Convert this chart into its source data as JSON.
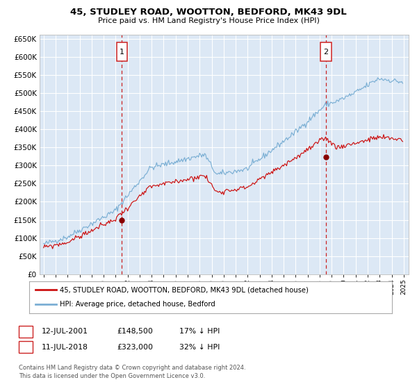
{
  "title1": "45, STUDLEY ROAD, WOOTTON, BEDFORD, MK43 9DL",
  "title2": "Price paid vs. HM Land Registry's House Price Index (HPI)",
  "legend1": "45, STUDLEY ROAD, WOOTTON, BEDFORD, MK43 9DL (detached house)",
  "legend2": "HPI: Average price, detached house, Bedford",
  "marker1_date": "2001-07-12",
  "marker1_label": "1",
  "marker1_value": 148500,
  "marker2_date": "2018-07-11",
  "marker2_label": "2",
  "marker2_value": 323000,
  "footer": "Contains HM Land Registry data © Crown copyright and database right 2024.\nThis data is licensed under the Open Government Licence v3.0.",
  "ylim": [
    0,
    660000
  ],
  "yticks": [
    0,
    50000,
    100000,
    150000,
    200000,
    250000,
    300000,
    350000,
    400000,
    450000,
    500000,
    550000,
    600000,
    650000
  ],
  "hpi_color": "#7bafd4",
  "price_color": "#cc1111",
  "marker_color": "#880000",
  "dashed_color": "#cc2222",
  "bg_color": "#dce8f5",
  "grid_color": "#ffffff",
  "box_edge_color": "#cc2222",
  "fig_bg": "#ffffff",
  "spine_color": "#bbbbbb"
}
